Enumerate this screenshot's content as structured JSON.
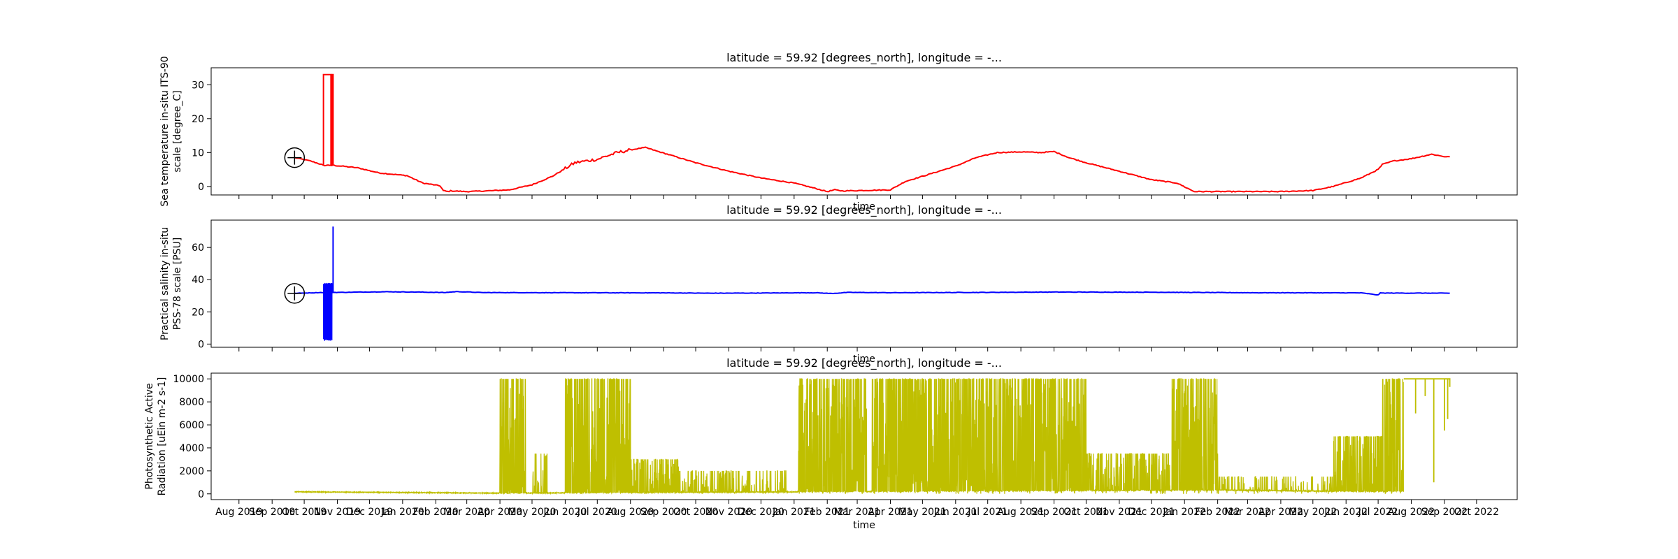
{
  "chart_data": [
    {
      "type": "line",
      "title": "latitude = 59.92 [degrees_north], longitude = -...",
      "xlabel": "time",
      "ylabel": "Sea temperature in-situ ITS-90 scale [degree_C]",
      "ylim": [
        -2.5,
        35
      ],
      "yticks": [
        0,
        10,
        20,
        30
      ],
      "grid": false,
      "color": "#ff0000",
      "marker_point": {
        "x": "2019-09-22",
        "y": 8.5
      },
      "series": [
        {
          "x": [
            "2019-09-22",
            "2019-10-07",
            "2019-10-17",
            "2019-10-19",
            "2019-10-26",
            "2019-10-27",
            "2019-10-28",
            "2019-10-29",
            "2019-11-05",
            "2019-11-20",
            "2019-12-10",
            "2020-01-05",
            "2020-01-20",
            "2020-02-05",
            "2020-02-08",
            "2020-02-12",
            "2020-02-15",
            "2020-03-01",
            "2020-03-20",
            "2020-04-10",
            "2020-05-01",
            "2020-05-20",
            "2020-06-10",
            "2020-06-20",
            "2020-07-01",
            "2020-07-10",
            "2020-07-20",
            "2020-08-01",
            "2020-08-15",
            "2020-08-25",
            "2020-09-10",
            "2020-10-01",
            "2020-11-01",
            "2020-12-01",
            "2021-01-01",
            "2021-01-20",
            "2021-02-01",
            "2021-02-08",
            "2021-02-15",
            "2021-03-01",
            "2021-04-01",
            "2021-04-15",
            "2021-05-01",
            "2021-06-01",
            "2021-06-20",
            "2021-07-10",
            "2021-08-01",
            "2021-08-20",
            "2021-09-01",
            "2021-09-15",
            "2021-10-01",
            "2021-11-01",
            "2021-12-01",
            "2021-12-25",
            "2022-01-10",
            "2022-02-01",
            "2022-03-01",
            "2022-04-01",
            "2022-05-01",
            "2022-05-20",
            "2022-06-15",
            "2022-07-01",
            "2022-07-05",
            "2022-07-15",
            "2022-08-01",
            "2022-08-20",
            "2022-09-01",
            "2022-09-06"
          ],
          "y": [
            8.5,
            7.5,
            6.5,
            6.2,
            6.3,
            6.1,
            6.4,
            6.2,
            6.0,
            5.5,
            4.0,
            3.2,
            1.0,
            0.2,
            -1.2,
            -1.5,
            -1.3,
            -1.5,
            -1.3,
            -1.0,
            0.5,
            3.0,
            7.0,
            7.5,
            8.0,
            9.0,
            10.0,
            10.8,
            11.5,
            10.5,
            9.0,
            7.0,
            4.5,
            2.5,
            1.0,
            -0.5,
            -1.5,
            -1.0,
            -1.3,
            -1.2,
            -1.0,
            1.5,
            3.0,
            6.0,
            8.5,
            10.0,
            10.2,
            10.0,
            10.3,
            8.5,
            7.0,
            4.5,
            2.0,
            1.0,
            -1.5,
            -1.5,
            -1.5,
            -1.5,
            -1.2,
            0.0,
            2.5,
            5.0,
            6.5,
            7.5,
            8.2,
            9.5,
            8.8,
            8.8
          ]
        }
      ],
      "spike_bands": [
        {
          "x": [
            "2019-10-19",
            "2019-10-26"
          ],
          "value": 33
        },
        {
          "x": [
            "2019-10-27",
            "2019-10-28"
          ],
          "value": 33
        }
      ]
    },
    {
      "type": "line",
      "title": "latitude = 59.92 [degrees_north], longitude = -...",
      "xlabel": "time",
      "ylabel": "Practical salinity in-situ PSS-78 scale [PSU]",
      "ylim": [
        -2,
        77
      ],
      "yticks": [
        0,
        20,
        40,
        60
      ],
      "grid": false,
      "color": "#0000ff",
      "marker_point": {
        "x": "2019-09-22",
        "y": 31.5
      },
      "series": [
        {
          "x": [
            "2019-09-22",
            "2019-10-15",
            "2019-11-15",
            "2019-12-15",
            "2020-01-15",
            "2020-02-10",
            "2020-02-20",
            "2020-03-15",
            "2020-06-01",
            "2020-09-01",
            "2020-10-15",
            "2020-12-01",
            "2021-01-20",
            "2021-02-05",
            "2021-02-20",
            "2021-04-01",
            "2021-07-01",
            "2021-09-01",
            "2021-12-01",
            "2022-03-01",
            "2022-06-15",
            "2022-07-01",
            "2022-07-03",
            "2022-09-06"
          ],
          "y": [
            31.5,
            32.0,
            32.2,
            32.5,
            32.3,
            32.0,
            32.6,
            32.0,
            31.9,
            31.8,
            31.6,
            31.7,
            31.9,
            31.4,
            32.1,
            31.9,
            32.1,
            32.3,
            32.2,
            31.9,
            31.8,
            30.5,
            31.7,
            31.6
          ]
        }
      ],
      "noise_band": {
        "x": [
          "2019-10-19",
          "2019-10-27"
        ],
        "min": 2,
        "max": 38
      },
      "spike": {
        "x": "2019-10-28",
        "value": 73
      }
    },
    {
      "type": "line",
      "title": "latitude = 59.92 [degrees_north], longitude = -...",
      "xlabel": "time",
      "ylabel": "Photosynthetic Active Radiation [uEin m-2 s-1]",
      "ylim": [
        -500,
        10500
      ],
      "yticks": [
        0,
        2000,
        4000,
        6000,
        8000,
        10000
      ],
      "grid": false,
      "color": "#bfbf00",
      "baseline": [
        {
          "x": "2019-09-22",
          "y": 150
        },
        {
          "x": "2020-04-01",
          "y": 30
        },
        {
          "x": "2022-02-01",
          "y": 300
        },
        {
          "x": "2022-05-15",
          "y": 200
        }
      ],
      "bursts": [
        {
          "x": [
            "2020-04-01",
            "2020-04-25"
          ],
          "max": 10000,
          "density": 0.9
        },
        {
          "x": [
            "2020-05-01",
            "2020-05-15"
          ],
          "max": 3500,
          "density": 0.4
        },
        {
          "x": [
            "2020-06-01",
            "2020-08-01"
          ],
          "max": 10000,
          "density": 1.0
        },
        {
          "x": [
            "2020-08-01",
            "2020-09-15"
          ],
          "max": 3000,
          "density": 0.7
        },
        {
          "x": [
            "2020-09-15",
            "2020-12-25"
          ],
          "max": 2000,
          "density": 0.4
        },
        {
          "x": [
            "2021-01-05",
            "2021-03-10"
          ],
          "max": 10000,
          "density": 0.9
        },
        {
          "x": [
            "2021-03-15",
            "2021-10-01"
          ],
          "max": 10000,
          "density": 1.0
        },
        {
          "x": [
            "2021-10-01",
            "2021-12-20"
          ],
          "max": 3500,
          "density": 0.7
        },
        {
          "x": [
            "2021-12-20",
            "2022-02-01"
          ],
          "max": 10000,
          "density": 0.9
        },
        {
          "x": [
            "2022-02-01",
            "2022-05-20"
          ],
          "max": 1500,
          "density": 0.3
        },
        {
          "x": [
            "2022-05-20",
            "2022-07-05"
          ],
          "max": 5000,
          "density": 0.8
        },
        {
          "x": [
            "2022-07-05",
            "2022-08-01"
          ],
          "max": 10000,
          "density": 0.9
        }
      ],
      "plateau": {
        "x": [
          "2022-07-25",
          "2022-09-06"
        ],
        "value": 10000,
        "dips": [
          {
            "x": "2022-08-05",
            "value": 7000
          },
          {
            "x": "2022-08-14",
            "value": 8500
          },
          {
            "x": "2022-08-22",
            "value": 1000
          },
          {
            "x": "2022-09-01",
            "value": 5500
          },
          {
            "x": "2022-09-04",
            "value": 6500
          }
        ]
      },
      "xticks": [
        "Aug 2019",
        "Sep 2019",
        "Oct 2019",
        "Nov 2019",
        "Dec 2019",
        "Jan 2020",
        "Feb 2020",
        "Mar 2020",
        "Apr 2020",
        "May 2020",
        "Jun 2020",
        "Jul 2020",
        "Aug 2020",
        "Sep 2020",
        "Oct 2020",
        "Nov 2020",
        "Dec 2020",
        "Jan 2021",
        "Feb 2021",
        "Mar 2021",
        "Apr 2021",
        "May 2021",
        "Jun 2021",
        "Jul 2021",
        "Aug 2021",
        "Sep 2021",
        "Oct 2021",
        "Nov 2021",
        "Dec 2021",
        "Jan 2022",
        "Feb 2022",
        "Mar 2022",
        "Apr 2022",
        "May 2022",
        "Jun 2022",
        "Jul 2022",
        "Aug 2022",
        "Sep 2022",
        "Oct 2022"
      ]
    }
  ]
}
